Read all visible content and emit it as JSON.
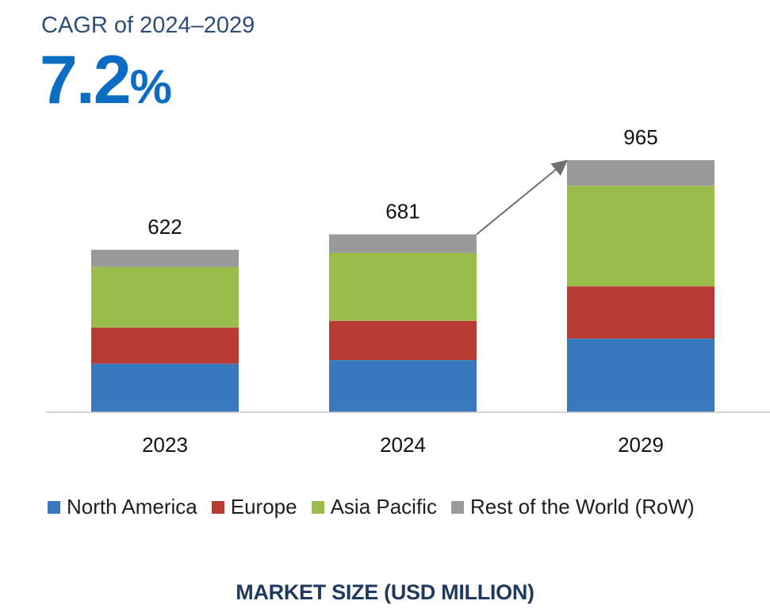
{
  "header": {
    "cagr_label": "CAGR of 2024–2029",
    "cagr_number": "7.2",
    "cagr_unit": "%"
  },
  "chart_data": {
    "type": "bar",
    "stacked": true,
    "categories": [
      "2023",
      "2024",
      "2029"
    ],
    "totals": [
      622,
      681,
      965
    ],
    "series": [
      {
        "name": "North America",
        "values": [
          186,
          200,
          282
        ],
        "color": "#3a78be"
      },
      {
        "name": "Europe",
        "values": [
          138,
          150,
          200
        ],
        "color": "#b73a33"
      },
      {
        "name": "Asia Pacific",
        "values": [
          232,
          260,
          385
        ],
        "color": "#9bbd4e"
      },
      {
        "name": "Rest of the World (RoW)",
        "values": [
          66,
          71,
          98
        ],
        "color": "#9a9a9a"
      }
    ],
    "xlabel": "MARKET SIZE (USD MILLION)",
    "ylabel": "",
    "ylim": [
      0,
      1000
    ],
    "grid": false,
    "legend_position": "bottom",
    "annotations": [
      "growth arrow from 2024 to 2029"
    ]
  }
}
